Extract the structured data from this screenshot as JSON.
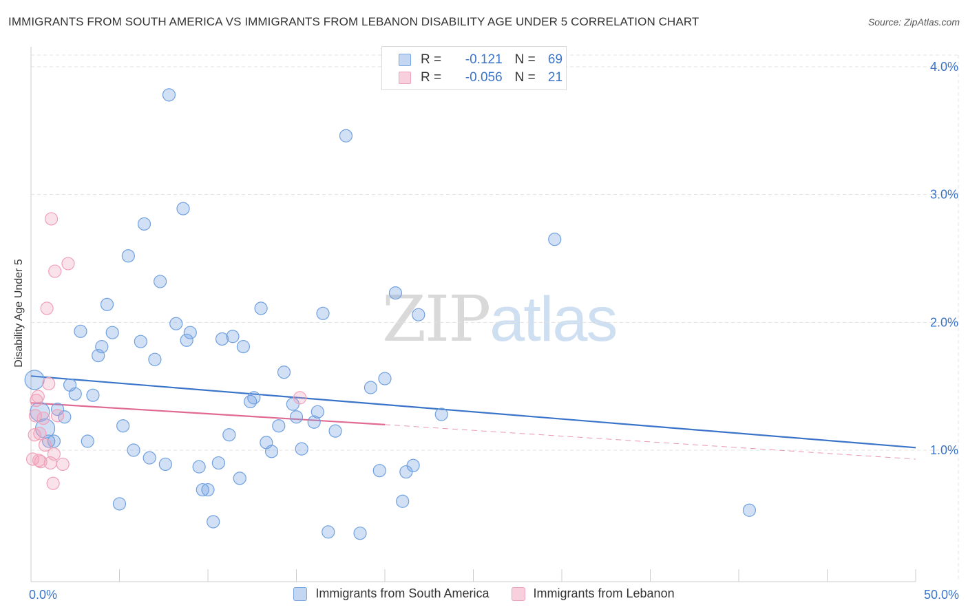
{
  "chart_data": {
    "type": "scatter",
    "title": "IMMIGRANTS FROM SOUTH AMERICA VS IMMIGRANTS FROM LEBANON DISABILITY AGE UNDER 5 CORRELATION CHART",
    "source": "Source: ZipAtlas.com",
    "xlabel": "",
    "ylabel": "Disability Age Under 5",
    "xlim": [
      0,
      50
    ],
    "ylim": [
      0,
      4.1
    ],
    "x_tick_labels": [
      "0.0%",
      "50.0%"
    ],
    "y_ticks": [
      1.0,
      2.0,
      3.0,
      4.0
    ],
    "y_tick_labels": [
      "1.0%",
      "2.0%",
      "3.0%",
      "4.0%"
    ],
    "grid": true,
    "legend_position": "top-center",
    "watermark": "ZIPatlas",
    "series": [
      {
        "name": "Immigrants from South America",
        "color": "#6fa0e0",
        "line_color": "#3a74c9",
        "R": "-0.121",
        "N": "69",
        "trend": {
          "x0": 0,
          "y0": 1.58,
          "x1": 50,
          "y1": 1.02
        },
        "points": [
          [
            0.2,
            1.55
          ],
          [
            0.5,
            1.3
          ],
          [
            0.8,
            1.17
          ],
          [
            1.0,
            1.07
          ],
          [
            1.3,
            1.07
          ],
          [
            1.5,
            1.32
          ],
          [
            1.9,
            1.26
          ],
          [
            2.2,
            1.51
          ],
          [
            2.5,
            1.44
          ],
          [
            2.8,
            1.93
          ],
          [
            3.2,
            1.07
          ],
          [
            3.5,
            1.43
          ],
          [
            3.8,
            1.74
          ],
          [
            4.0,
            1.81
          ],
          [
            4.3,
            2.14
          ],
          [
            4.6,
            1.92
          ],
          [
            5.0,
            0.58
          ],
          [
            5.2,
            1.19
          ],
          [
            5.5,
            2.52
          ],
          [
            5.8,
            1.0
          ],
          [
            6.2,
            1.85
          ],
          [
            6.4,
            2.77
          ],
          [
            6.7,
            0.94
          ],
          [
            7.0,
            1.71
          ],
          [
            7.3,
            2.32
          ],
          [
            7.6,
            0.89
          ],
          [
            7.8,
            3.78
          ],
          [
            8.2,
            1.99
          ],
          [
            8.6,
            2.89
          ],
          [
            8.8,
            1.86
          ],
          [
            9.0,
            1.92
          ],
          [
            9.5,
            0.87
          ],
          [
            9.7,
            0.69
          ],
          [
            10.0,
            0.69
          ],
          [
            10.3,
            0.44
          ],
          [
            10.6,
            0.9
          ],
          [
            10.8,
            1.87
          ],
          [
            11.2,
            1.12
          ],
          [
            11.4,
            1.89
          ],
          [
            11.8,
            0.78
          ],
          [
            12.0,
            1.81
          ],
          [
            12.4,
            1.38
          ],
          [
            12.6,
            1.41
          ],
          [
            13.0,
            2.11
          ],
          [
            13.3,
            1.06
          ],
          [
            13.6,
            0.99
          ],
          [
            14.0,
            1.19
          ],
          [
            14.3,
            1.61
          ],
          [
            14.8,
            1.36
          ],
          [
            15.0,
            1.26
          ],
          [
            15.3,
            1.01
          ],
          [
            16.0,
            1.22
          ],
          [
            16.2,
            1.3
          ],
          [
            16.5,
            2.07
          ],
          [
            16.8,
            0.36
          ],
          [
            17.2,
            1.15
          ],
          [
            17.8,
            3.46
          ],
          [
            18.6,
            0.35
          ],
          [
            19.2,
            1.49
          ],
          [
            19.7,
            0.84
          ],
          [
            20.0,
            1.56
          ],
          [
            20.6,
            2.23
          ],
          [
            21.0,
            0.6
          ],
          [
            21.2,
            0.83
          ],
          [
            21.6,
            0.88
          ],
          [
            21.9,
            2.06
          ],
          [
            23.2,
            1.28
          ],
          [
            29.6,
            2.65
          ],
          [
            40.6,
            0.53
          ]
        ]
      },
      {
        "name": "Immigrants from Lebanon",
        "color": "#f0a0b8",
        "line_color": "#e06a93",
        "R": "-0.056",
        "N": "21",
        "trend": {
          "x0": 0,
          "y0": 1.37,
          "x1": 20,
          "y1": 1.2
        },
        "trend_extension": {
          "x0": 20,
          "y0": 1.2,
          "x1": 50,
          "y1": 0.93
        },
        "points": [
          [
            0.1,
            0.93
          ],
          [
            0.2,
            1.12
          ],
          [
            0.25,
            1.27
          ],
          [
            0.3,
            1.39
          ],
          [
            0.4,
            1.42
          ],
          [
            0.45,
            0.92
          ],
          [
            0.5,
            1.13
          ],
          [
            0.55,
            0.91
          ],
          [
            0.7,
            1.25
          ],
          [
            0.8,
            1.04
          ],
          [
            0.9,
            2.11
          ],
          [
            1.0,
            1.52
          ],
          [
            1.1,
            0.9
          ],
          [
            1.15,
            2.81
          ],
          [
            1.25,
            0.74
          ],
          [
            1.3,
            0.97
          ],
          [
            1.35,
            2.4
          ],
          [
            1.5,
            1.27
          ],
          [
            1.8,
            0.89
          ],
          [
            2.1,
            2.46
          ],
          [
            15.2,
            1.41
          ]
        ]
      }
    ]
  }
}
